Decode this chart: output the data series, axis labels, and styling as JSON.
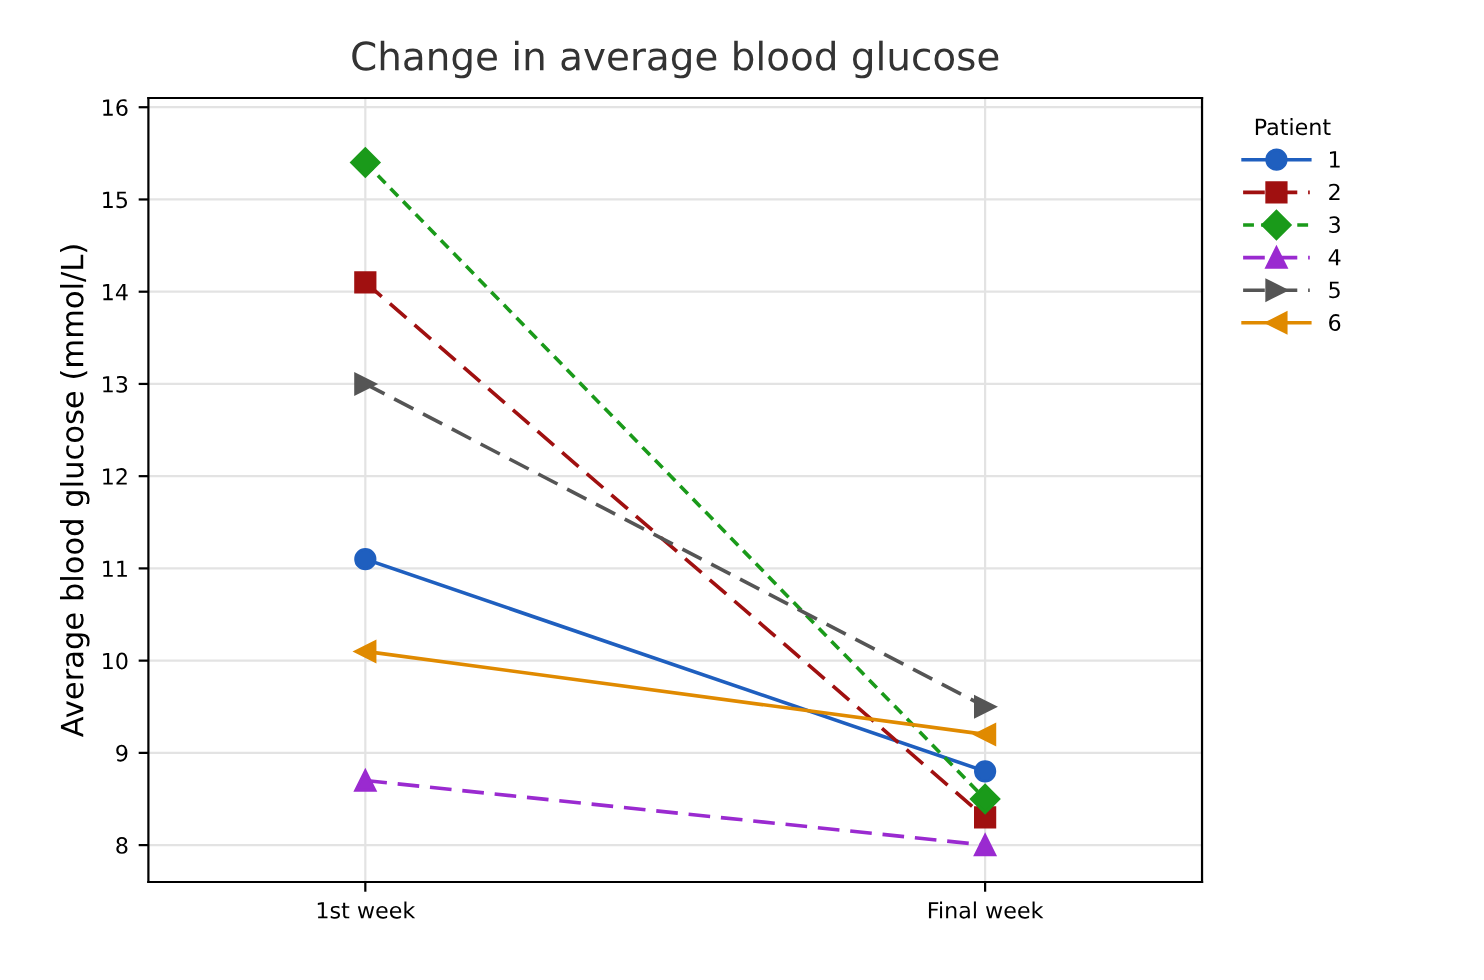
{
  "chart_data": {
    "type": "line",
    "title": "Change in average blood glucose",
    "ylabel": "Average blood glucose (mmol/L)",
    "legend_title": "Patient",
    "categories": [
      "1st week",
      "Final week"
    ],
    "series": [
      {
        "name": "1",
        "color": "#1f5fbf",
        "values": [
          11.1,
          8.8
        ],
        "marker": "circle",
        "line_style": "solid"
      },
      {
        "name": "2",
        "color": "#a01010",
        "values": [
          14.1,
          8.3
        ],
        "marker": "square",
        "line_style": "dashed"
      },
      {
        "name": "3",
        "color": "#1a9a1a",
        "values": [
          15.4,
          8.5
        ],
        "marker": "diamond",
        "line_style": "dotted"
      },
      {
        "name": "4",
        "color": "#9a2ad0",
        "values": [
          8.7,
          8.0
        ],
        "marker": "triangle",
        "line_style": "dashed"
      },
      {
        "name": "5",
        "color": "#555555",
        "values": [
          13.0,
          9.5
        ],
        "marker": "triangle_right",
        "line_style": "dashed"
      },
      {
        "name": "6",
        "color": "#e08a00",
        "values": [
          10.1,
          9.2
        ],
        "marker": "triangle_left",
        "line_style": "solid"
      }
    ],
    "ylim": [
      7.6,
      16.1
    ],
    "yticks": [
      8,
      9,
      10,
      11,
      12,
      13,
      14,
      15,
      16
    ],
    "grid": true,
    "legend": "right"
  }
}
